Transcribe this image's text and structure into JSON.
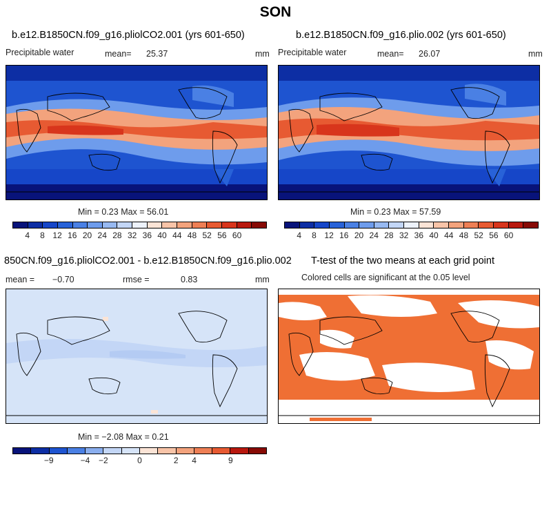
{
  "title": "SON",
  "colors": {
    "abs_scale": [
      "#08137a",
      "#0d2ea4",
      "#1646c8",
      "#2862d8",
      "#4a80e4",
      "#6e9cec",
      "#97b9f1",
      "#c3d6f6",
      "#edf2fb",
      "#fbe4d6",
      "#f8c4a8",
      "#f3a37d",
      "#ee7f55",
      "#e75a32",
      "#d8351c",
      "#b8180e",
      "#870a05"
    ],
    "diff_scale": [
      "#08137a",
      "#0d2ea4",
      "#1e54d0",
      "#4a80e4",
      "#8aaeee",
      "#c3d6f6",
      "#d6e4f8",
      "#fbe4d6",
      "#f8c4a8",
      "#f3a37d",
      "#ee7f55",
      "#e75a32",
      "#b8180e",
      "#870a05"
    ],
    "sig_color": "#ef6f34"
  },
  "panels": {
    "p1": {
      "title": "b.e12.B1850CN.f09_g16.pliolCO2.001 (yrs 601-650)",
      "variable": "Precipitable water",
      "mean_label": "mean=",
      "mean_value": "25.37",
      "units": "mm",
      "minmax": "Min =    0.23 Max =   56.01"
    },
    "p2": {
      "title": "b.e12.B1850CN.f09_g16.plio.002 (yrs 601-650)",
      "variable": "Precipitable water",
      "mean_label": "mean=",
      "mean_value": "26.07",
      "units": "mm",
      "minmax": "Min =    0.23 Max =   57.59"
    },
    "p3": {
      "title": "850CN.f09_g16.pliolCO2.001 - b.e12.B1850CN.f09_g16.plio.002",
      "mean_label": "mean =",
      "mean_value": "−0.70",
      "rmse_label": "rmse =",
      "rmse_value": "0.83",
      "units": "mm",
      "minmax": "Min =  −2.08 Max =    0.21"
    },
    "p4": {
      "title": "T-test of the two means at each grid point",
      "subtitle": "Colored cells are significant at the 0.05 level"
    }
  },
  "abs_ticks": [
    "4",
    "8",
    "12",
    "16",
    "20",
    "24",
    "28",
    "32",
    "36",
    "40",
    "44",
    "48",
    "52",
    "56",
    "60"
  ],
  "diff_ticks": [
    "−9",
    "−4",
    "−2",
    "0",
    "2",
    "4",
    "9"
  ]
}
